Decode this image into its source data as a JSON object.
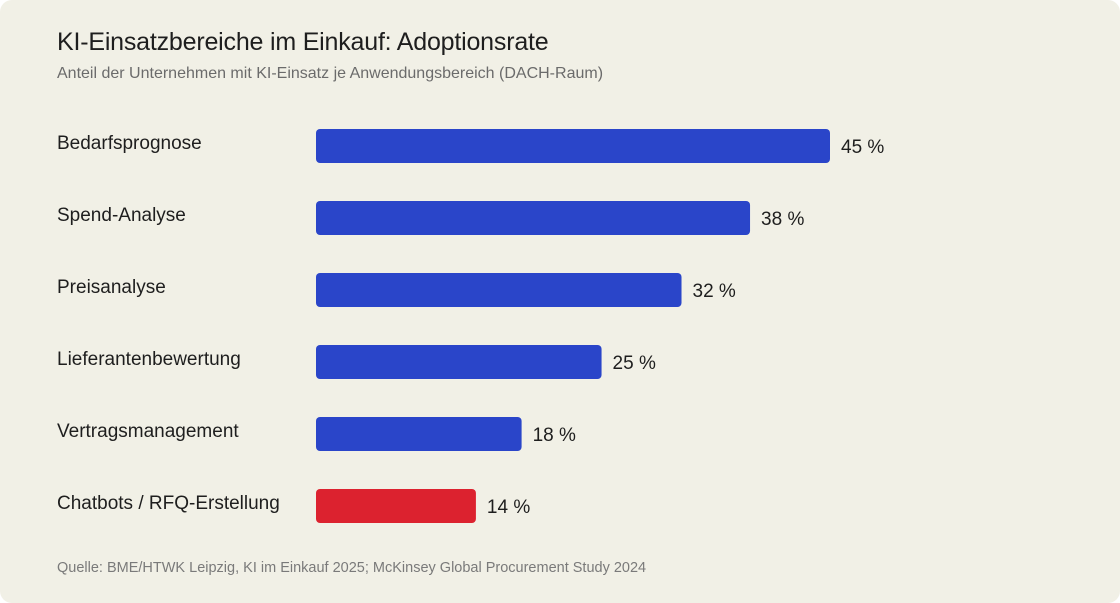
{
  "header": {
    "title": "KI-Einsatzbereiche im Einkauf: Adoptionsrate",
    "subtitle": "Anteil der Unternehmen mit KI-Einsatz je Anwendungsbereich (DACH-Raum)"
  },
  "footer": {
    "source": "Quelle: BME/HTWK Leipzig, KI im Einkauf 2025; McKinsey Global Procurement Study 2024"
  },
  "chart_data": {
    "type": "bar",
    "orientation": "horizontal",
    "title": "KI-Einsatzbereiche im Einkauf: Adoptionsrate",
    "subtitle": "Anteil der Unternehmen mit KI-Einsatz je Anwendungsbereich (DACH-Raum)",
    "categories": [
      "Bedarfsprognose",
      "Spend-Analyse",
      "Preisanalyse",
      "Lieferantenbewertung",
      "Vertragsmanagement",
      "Chatbots / RFQ-Erstellung"
    ],
    "values": [
      45,
      38,
      32,
      25,
      18,
      14
    ],
    "value_labels": [
      "45 %",
      "38 %",
      "32 %",
      "25 %",
      "18 %",
      "14 %"
    ],
    "unit": "%",
    "bar_colors": [
      "#2a45c9",
      "#2a45c9",
      "#2a45c9",
      "#2a45c9",
      "#2a45c9",
      "#dc222f"
    ],
    "xlim": [
      0,
      45
    ],
    "grid": false,
    "axes_visible": false,
    "legend": "none"
  }
}
